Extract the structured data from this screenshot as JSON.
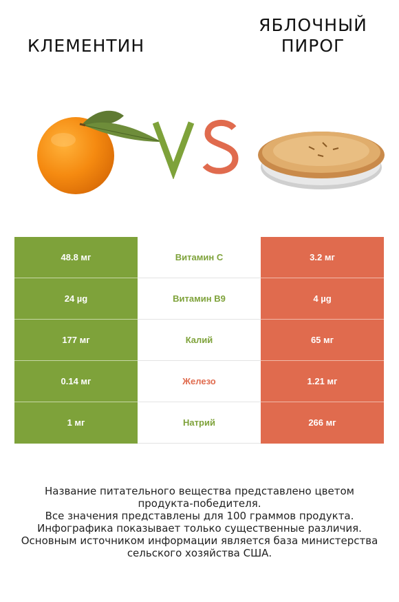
{
  "header": {
    "left_title": "КЛЕМЕНТИН",
    "right_title_line1": "ЯБЛОЧНЫЙ",
    "right_title_line2": "ПИРОГ",
    "vs_left_color": "#7ea23a",
    "vs_right_color": "#e06b4e"
  },
  "images": {
    "left": "clementine-image",
    "right": "apple-pie-image"
  },
  "colors": {
    "left_winner": "#7ea23a",
    "right_winner": "#e06b4e"
  },
  "rows": [
    {
      "left": "48.8 мг",
      "nutrient": "Витамин C",
      "right": "3.2 мг",
      "winner": "left",
      "nutrient_color": "#7ea23a"
    },
    {
      "left": "24 µg",
      "nutrient": "Витамин B9",
      "right": "4 µg",
      "winner": "left",
      "nutrient_color": "#7ea23a"
    },
    {
      "left": "177 мг",
      "nutrient": "Калий",
      "right": "65 мг",
      "winner": "left",
      "nutrient_color": "#7ea23a"
    },
    {
      "left": "0.14 мг",
      "nutrient": "Железо",
      "right": "1.21 мг",
      "winner": "right",
      "nutrient_color": "#e06b4e"
    },
    {
      "left": "1 мг",
      "nutrient": "Натрий",
      "right": "266 мг",
      "winner": "left",
      "nutrient_color": "#7ea23a"
    }
  ],
  "footer": {
    "line1": "Название питательного вещества представлено цветом",
    "line2": "продукта-победителя.",
    "line3": "Все значения представлены для 100 граммов продукта.",
    "line4": "Инфографика показывает только существенные различия.",
    "line5": "Основным источником информации является база министерства",
    "line6": "сельского хозяйства США."
  }
}
